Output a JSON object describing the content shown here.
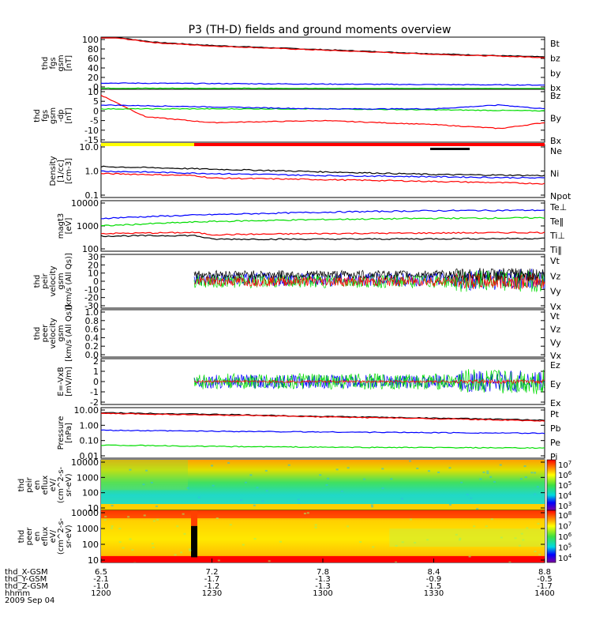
{
  "title": "P3 (TH-D) fields and ground moments overview",
  "colors": {
    "black": "#000000",
    "red": "#ff0000",
    "green": "#00dd00",
    "blue": "#0000ff",
    "yellow": "#ffff00"
  },
  "chart_data": [
    {
      "type": "line",
      "panel": "fgs_gsm_mag",
      "ylabel": [
        "thd",
        "fgs",
        "gsm",
        "[nT]"
      ],
      "ylim": [
        0,
        100
      ],
      "ticks": [
        "100",
        "80",
        "60",
        "40",
        "20",
        "0"
      ],
      "legend": [
        {
          "name": "Bt",
          "color": "#000000"
        },
        {
          "name": "bz",
          "color": "#ff0000"
        },
        {
          "name": "by",
          "color": "#00dd00"
        },
        {
          "name": "bx",
          "color": "#0000ff"
        }
      ],
      "series": [
        {
          "name": "Bt",
          "x": [
            12.0,
            12.25,
            12.5,
            13.0,
            13.5,
            14.0
          ],
          "values": [
            103,
            90,
            84,
            76,
            68,
            62
          ]
        },
        {
          "name": "bz",
          "x": [
            12.0,
            12.25,
            12.5,
            13.0,
            13.5,
            14.0
          ],
          "values": [
            102,
            89,
            83,
            75,
            67,
            61
          ]
        },
        {
          "name": "by",
          "x": [
            12.0,
            14.0
          ],
          "values": [
            2,
            1
          ]
        },
        {
          "name": "bx",
          "x": [
            12.0,
            13.0,
            14.0
          ],
          "values": [
            12,
            10,
            8
          ]
        }
      ]
    },
    {
      "type": "line",
      "panel": "fgs_gsm_dp",
      "ylabel": [
        "thd",
        "fgs",
        "gsm",
        "-dp",
        "[nT]"
      ],
      "ylim": [
        -17,
        10
      ],
      "ticks": [
        "10",
        "5",
        "0",
        "-5",
        "-10",
        "-15"
      ],
      "legend": [
        {
          "name": "Bz",
          "color": "#ff0000"
        },
        {
          "name": "By",
          "color": "#00dd00"
        },
        {
          "name": "Bx",
          "color": "#0000ff"
        }
      ],
      "series": [
        {
          "name": "Bz",
          "x": [
            12.0,
            12.2,
            12.5,
            13.0,
            13.5,
            13.8,
            14.0
          ],
          "values": [
            7,
            -4,
            -7,
            -6,
            -8,
            -10,
            -7
          ]
        },
        {
          "name": "By",
          "x": [
            12.0,
            13.0,
            14.0
          ],
          "values": [
            0,
            0,
            -1
          ]
        },
        {
          "name": "Bx",
          "x": [
            12.0,
            12.5,
            13.0,
            13.5,
            13.8,
            14.0
          ],
          "values": [
            2,
            1,
            0,
            0,
            2,
            0
          ]
        }
      ]
    },
    {
      "type": "line",
      "panel": "density",
      "ylabel": [
        "Density",
        "[1/cc]",
        "[cm-3]"
      ],
      "ylim": [
        0.1,
        20
      ],
      "scale": "log",
      "ticks": [
        "10.0",
        "1.0",
        "0.1"
      ],
      "legend": [
        {
          "name": "Ne",
          "color": "#ff0000"
        },
        {
          "name": "Ni",
          "color": "#000000"
        },
        {
          "name": "Npot",
          "color": "#0000ff"
        }
      ],
      "series": [
        {
          "name": "Ni",
          "x": [
            12.0,
            12.5,
            13.0,
            13.5,
            14.0
          ],
          "values": [
            2.2,
            1.7,
            1.3,
            1.0,
            0.9
          ]
        },
        {
          "name": "Ne",
          "x": [
            12.0,
            12.42,
            12.5,
            13.0,
            13.5,
            14.0
          ],
          "values": [
            1.1,
            0.9,
            0.7,
            0.6,
            0.5,
            0.4
          ]
        },
        {
          "name": "Npot",
          "x": [
            12.0,
            12.5,
            13.0,
            14.0
          ],
          "values": [
            1.4,
            1.1,
            0.9,
            0.7
          ]
        }
      ]
    },
    {
      "type": "line",
      "panel": "temperature",
      "ylabel": [
        "magt3",
        "[eV]"
      ],
      "ylim": [
        100,
        10000
      ],
      "scale": "log",
      "ticks": [
        "10000",
        "1000",
        "100"
      ],
      "legend": [
        {
          "name": "Te⊥",
          "color": "#ff0000"
        },
        {
          "name": "Te‖",
          "color": "#000000"
        },
        {
          "name": "Ti⊥",
          "color": "#0000ff"
        },
        {
          "name": "Ti‖",
          "color": "#00dd00"
        }
      ],
      "series": [
        {
          "name": "Ti⊥",
          "x": [
            12.0,
            12.5,
            13.0,
            13.5,
            14.0
          ],
          "values": [
            2000,
            2800,
            3500,
            4000,
            4200
          ]
        },
        {
          "name": "Ti‖",
          "x": [
            12.0,
            12.5,
            13.0,
            13.5,
            14.0
          ],
          "values": [
            1000,
            1500,
            1800,
            2000,
            2100
          ]
        },
        {
          "name": "Te⊥",
          "x": [
            12.0,
            12.42,
            12.5,
            13.0,
            14.0
          ],
          "values": [
            500,
            550,
            450,
            500,
            550
          ]
        },
        {
          "name": "Te‖",
          "x": [
            12.0,
            12.42,
            12.5,
            13.0,
            14.0
          ],
          "values": [
            400,
            420,
            300,
            300,
            320
          ]
        }
      ]
    },
    {
      "type": "line",
      "panel": "peir_velocity",
      "ylabel": [
        "thd",
        "peir",
        "velocity",
        "gsm",
        "[km/s (All Qs)]"
      ],
      "ylim": [
        -32,
        32
      ],
      "ticks": [
        "30",
        "20",
        "10",
        "0",
        "-10",
        "-20",
        "-30"
      ],
      "legend": [
        {
          "name": "Vt",
          "color": "#000000"
        },
        {
          "name": "Vz",
          "color": "#ff0000"
        },
        {
          "name": "Vy",
          "color": "#00dd00"
        },
        {
          "name": "Vx",
          "color": "#0000ff"
        }
      ]
    },
    {
      "type": "line",
      "panel": "peer_velocity",
      "ylabel": [
        "thd",
        "peer",
        "velocity",
        "gsm",
        "[km/s (All Qs)]"
      ],
      "ylim": [
        0,
        1
      ],
      "ticks": [
        "1.0",
        "0.8",
        "0.6",
        "0.4",
        "0.2",
        "0.0"
      ],
      "legend": [
        {
          "name": "Vt",
          "color": "#000000"
        },
        {
          "name": "Vz",
          "color": "#ff0000"
        },
        {
          "name": "Vy",
          "color": "#00dd00"
        },
        {
          "name": "Vx",
          "color": "#0000ff"
        }
      ]
    },
    {
      "type": "line",
      "panel": "efield",
      "ylabel": [
        "E=-VxB",
        "[mV/m]"
      ],
      "ylim": [
        -2,
        2
      ],
      "ticks": [
        "2",
        "1",
        "0",
        "-1",
        "-2"
      ],
      "legend": [
        {
          "name": "Ez",
          "color": "#ff0000"
        },
        {
          "name": "Ey",
          "color": "#00dd00"
        },
        {
          "name": "Ex",
          "color": "#0000ff"
        }
      ]
    },
    {
      "type": "line",
      "panel": "pressure",
      "ylabel": [
        "Pressure",
        "[nPa]"
      ],
      "ylim": [
        0.01,
        10
      ],
      "scale": "log",
      "ticks": [
        "10.00",
        "1.00",
        "0.10",
        "0.01"
      ],
      "legend": [
        {
          "name": "Pt",
          "color": "#000000"
        },
        {
          "name": "Pb",
          "color": "#ff0000"
        },
        {
          "name": "Pe",
          "color": "#00dd00"
        },
        {
          "name": "Pi",
          "color": "#0000ff"
        }
      ],
      "series": [
        {
          "name": "Pt",
          "x": [
            12.0,
            13.0,
            14.0
          ],
          "values": [
            5.0,
            3.0,
            1.8
          ]
        },
        {
          "name": "Pb",
          "x": [
            12.0,
            13.0,
            14.0
          ],
          "values": [
            4.5,
            2.8,
            1.6
          ]
        },
        {
          "name": "Pi",
          "x": [
            12.0,
            12.5,
            13.0,
            14.0
          ],
          "values": [
            0.45,
            0.4,
            0.36,
            0.3
          ]
        },
        {
          "name": "Pe",
          "x": [
            12.0,
            12.5,
            13.0,
            14.0
          ],
          "values": [
            0.06,
            0.05,
            0.045,
            0.04
          ]
        }
      ]
    },
    {
      "type": "heatmap",
      "panel": "peir_en_eflux",
      "ylabel": [
        "thd",
        "peir",
        "en",
        "eflux",
        "eV/",
        "(cm^2-s-",
        "sr-eV)"
      ],
      "ticks": [
        "10000",
        "1000",
        "100",
        "10"
      ],
      "colorbar_ticks": [
        "10^7",
        "10^6",
        "10^5",
        "10^4",
        "10^3"
      ]
    },
    {
      "type": "heatmap",
      "panel": "peer_en_eflux",
      "ylabel": [
        "thd",
        "peer",
        "en",
        "eflux",
        "eV/",
        "(cm^2-s-",
        "sr-eV)"
      ],
      "ticks": [
        "10000",
        "1000",
        "100",
        "10"
      ],
      "colorbar_ticks": [
        "10^8",
        "10^7",
        "10^6",
        "10^5",
        "10^4"
      ]
    }
  ],
  "x_axis": {
    "labels": [
      "thd_X-GSM",
      "thd_Y-GSM",
      "thd_Z-GSM",
      "hhmm",
      "2009 Sep 04"
    ],
    "columns": [
      {
        "x": "6.5",
        "y": "-2.1",
        "z": "-1.0",
        "hhmm": "1200"
      },
      {
        "x": "7.2",
        "y": "-1.7",
        "z": "-1.2",
        "hhmm": "1230"
      },
      {
        "x": "7.8",
        "y": "-1.3",
        "z": "-1.3",
        "hhmm": "1300"
      },
      {
        "x": "8.4",
        "y": "-0.9",
        "z": "-1.5",
        "hhmm": "1330"
      },
      {
        "x": "8.8",
        "y": "-0.5",
        "z": "-1.7",
        "hhmm": "1400"
      }
    ]
  }
}
